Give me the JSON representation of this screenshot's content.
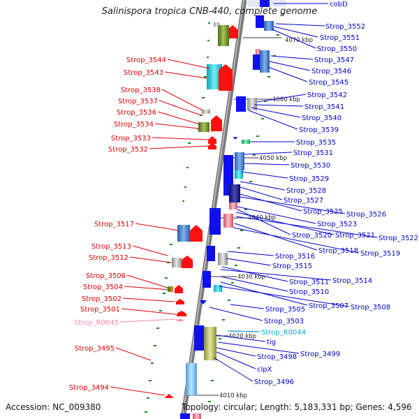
{
  "title": "Salinispora tropica CNB-440, complete genome",
  "footer": {
    "accession": "Accession: NC_009380",
    "topology": "Topology: circular; Length: 5,183,331 bp; Genes: 4,596"
  },
  "colors": {
    "forward_label": "#dd0000",
    "reverse_label": "#0000cc",
    "rna_forward_label": "#ee88aa",
    "rna_reverse_label": "#00aacc",
    "forward_arrow": "#ff1010",
    "reverse_arrow": "#1010ee",
    "backbone": "#7a7a7a"
  },
  "ticks": [
    "4070 kbp",
    "4060 kbp",
    "4050 kbp",
    "4040 kbp",
    "4030 kbp",
    "4020 kbp",
    "4010 kbp"
  ],
  "labels_right": [
    "cobD",
    "Strop_3552",
    "Strop_3551",
    "Strop_3550",
    "Strop_3547",
    "Strop_3546",
    "Strop_3545",
    "Strop_3542",
    "Strop_3541",
    "Strop_3540",
    "Strop_3539",
    "Strop_3535",
    "Strop_3531",
    "Strop_3530",
    "Strop_3529",
    "Strop_3528",
    "Strop_3527",
    "Strop_3525",
    "Strop_3526",
    "Strop_3523",
    "Strop_3520",
    "Strop_3521",
    "Strop_3522",
    "Strop_3518",
    "Strop_3519",
    "Strop_3516",
    "Strop_3515",
    "Strop_3511",
    "Strop_3514",
    "Strop_3510",
    "Strop_3507",
    "Strop_3508",
    "Strop_3505",
    "Strop_3503",
    "Strop_R0044",
    "tig",
    "Strop_3499",
    "Strop_3498",
    "clpX",
    "Strop_3496"
  ],
  "labels_left": [
    "Strop_3544",
    "Strop_3543",
    "Strop_3538",
    "Strop_3537",
    "Strop_3536",
    "Strop_3534",
    "Strop_3533",
    "Strop_3532",
    "Strop_3517",
    "Strop_3513",
    "Strop_3512",
    "Strop_3506",
    "Strop_3504",
    "Strop_3502",
    "Strop_3501",
    "Strop_R0045",
    "Strop_3495",
    "Strop_3494"
  ]
}
